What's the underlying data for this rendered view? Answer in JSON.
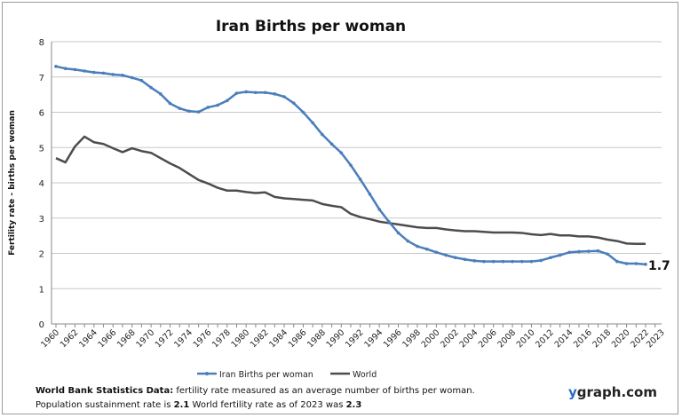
{
  "chart_data": {
    "type": "line",
    "title": "Iran Births per woman",
    "ylabel": "Fertility rate  - births per woman",
    "xlabel": "",
    "ylim": [
      0,
      8
    ],
    "yticks": [
      0,
      1,
      2,
      3,
      4,
      5,
      6,
      7,
      8
    ],
    "xlim": [
      1960,
      2023
    ],
    "xtick_labels": [
      "1960",
      "1962",
      "1964",
      "1966",
      "1968",
      "1970",
      "1972",
      "1974",
      "1976",
      "1978",
      "1980",
      "1982",
      "1984",
      "1986",
      "1988",
      "1990",
      "1992",
      "1994",
      "1996",
      "1998",
      "2000",
      "2002",
      "2004",
      "2006",
      "2008",
      "2010",
      "2012",
      "2014",
      "2016",
      "2018",
      "2020",
      "2022",
      "2023"
    ],
    "grid": true,
    "legend": "bottom",
    "x": [
      1960,
      1961,
      1962,
      1963,
      1964,
      1965,
      1966,
      1967,
      1968,
      1969,
      1970,
      1971,
      1972,
      1973,
      1974,
      1975,
      1976,
      1977,
      1978,
      1979,
      1980,
      1981,
      1982,
      1983,
      1984,
      1985,
      1986,
      1987,
      1988,
      1989,
      1990,
      1991,
      1992,
      1993,
      1994,
      1995,
      1996,
      1997,
      1998,
      1999,
      2000,
      2001,
      2002,
      2003,
      2004,
      2005,
      2006,
      2007,
      2008,
      2009,
      2010,
      2011,
      2012,
      2013,
      2014,
      2015,
      2016,
      2017,
      2018,
      2019,
      2020,
      2021,
      2022
    ],
    "series": [
      {
        "name": "Iran Births per woman",
        "color": "#4a7ebb",
        "markers": true,
        "values": [
          7.3,
          7.24,
          7.21,
          7.17,
          7.13,
          7.11,
          7.07,
          7.05,
          6.98,
          6.9,
          6.7,
          6.52,
          6.25,
          6.11,
          6.03,
          6.01,
          6.14,
          6.2,
          6.33,
          6.54,
          6.58,
          6.56,
          6.56,
          6.52,
          6.44,
          6.26,
          6.0,
          5.7,
          5.37,
          5.1,
          4.85,
          4.5,
          4.1,
          3.68,
          3.25,
          2.9,
          2.58,
          2.35,
          2.2,
          2.12,
          2.03,
          1.95,
          1.88,
          1.83,
          1.79,
          1.77,
          1.77,
          1.77,
          1.77,
          1.77,
          1.77,
          1.8,
          1.88,
          1.95,
          2.03,
          2.05,
          2.06,
          2.07,
          1.98,
          1.77,
          1.71,
          1.71,
          1.69
        ]
      },
      {
        "name": "World",
        "color": "#4d4d4d",
        "markers": false,
        "values": [
          4.7,
          4.58,
          5.03,
          5.31,
          5.15,
          5.1,
          4.98,
          4.87,
          4.98,
          4.9,
          4.85,
          4.7,
          4.55,
          4.42,
          4.25,
          4.08,
          3.98,
          3.86,
          3.78,
          3.78,
          3.74,
          3.71,
          3.73,
          3.6,
          3.56,
          3.54,
          3.52,
          3.5,
          3.4,
          3.35,
          3.31,
          3.12,
          3.03,
          2.97,
          2.9,
          2.86,
          2.82,
          2.78,
          2.74,
          2.72,
          2.72,
          2.68,
          2.65,
          2.63,
          2.63,
          2.61,
          2.59,
          2.59,
          2.59,
          2.58,
          2.54,
          2.52,
          2.55,
          2.51,
          2.51,
          2.48,
          2.48,
          2.45,
          2.39,
          2.35,
          2.28,
          2.27,
          2.27
        ]
      }
    ],
    "annotation": "1.7"
  },
  "footer": {
    "line1_bold": "World Bank  Statistics  Data:",
    "line1_rest": " fertility rate measured as an average number  of births per woman.",
    "line2_a": "Population sustainment rate is ",
    "line2_b": "2.1",
    "line2_c": "   World fertility rate as of 2023 was ",
    "line2_d": "2.3",
    "brand_y": "y",
    "brand_rest": "graph.com"
  }
}
